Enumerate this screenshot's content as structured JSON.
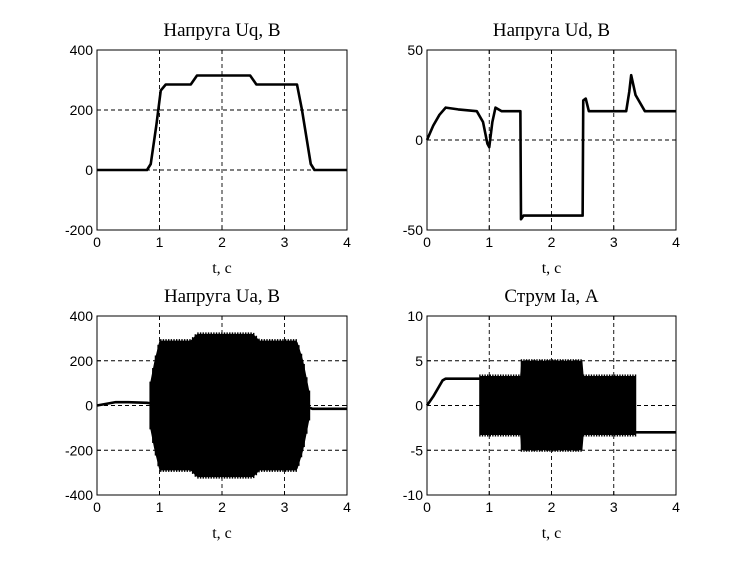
{
  "chart_data": [
    {
      "type": "line",
      "title": "Напруга Uq, В",
      "xlabel": "t,  c",
      "ylabel": "",
      "xlim": [
        0,
        4
      ],
      "ylim": [
        -200,
        400
      ],
      "xticks": [
        "0",
        "1",
        "2",
        "3",
        "4"
      ],
      "yticks": [
        "-200",
        "0",
        "200",
        "400"
      ],
      "grid": true,
      "series": [
        {
          "x": [
            0,
            0.8,
            0.86,
            0.95,
            1.02,
            1.1,
            1.5,
            1.6,
            2.45,
            2.55,
            3.2,
            3.28,
            3.42,
            3.48,
            4
          ],
          "y": [
            0,
            0,
            20,
            150,
            265,
            285,
            285,
            315,
            315,
            285,
            285,
            200,
            20,
            0,
            0
          ]
        }
      ]
    },
    {
      "type": "line",
      "title": "Напруга Ud, В",
      "xlabel": "t,  c",
      "ylabel": "",
      "xlim": [
        0,
        4
      ],
      "ylim": [
        -50,
        50
      ],
      "xticks": [
        "0",
        "1",
        "2",
        "3",
        "4"
      ],
      "yticks": [
        "-50",
        "0",
        "50"
      ],
      "grid": true,
      "series": [
        {
          "x": [
            0,
            0.1,
            0.2,
            0.3,
            0.5,
            0.8,
            0.9,
            0.97,
            1.0,
            1.05,
            1.1,
            1.2,
            1.5,
            1.51,
            1.55,
            1.6,
            2.5,
            2.51,
            2.55,
            2.6,
            3.2,
            3.25,
            3.28,
            3.35,
            3.5,
            4
          ],
          "y": [
            0,
            8,
            14,
            18,
            17,
            16,
            10,
            -2,
            -4,
            10,
            18,
            16,
            16,
            -44,
            -42,
            -42,
            -42,
            22,
            23,
            16,
            16,
            27,
            36,
            25,
            16,
            16
          ]
        }
      ]
    },
    {
      "type": "line",
      "title": "Напруга Ua, В",
      "xlabel": "t,  c",
      "ylabel": "",
      "xlim": [
        0,
        4
      ],
      "ylim": [
        -400,
        400
      ],
      "xticks": [
        "0",
        "1",
        "2",
        "3",
        "4"
      ],
      "yticks": [
        "-400",
        "-200",
        "0",
        "200",
        "400"
      ],
      "grid": true,
      "series": [
        {
          "x": [
            0,
            0.3,
            0.5,
            0.8,
            0.85
          ],
          "y": [
            0,
            15,
            15,
            12,
            10
          ]
        },
        {
          "x": [
            3.4,
            3.45,
            4
          ],
          "y": [
            -10,
            -15,
            -15
          ]
        }
      ],
      "envelope": {
        "x": [
          0.85,
          0.92,
          1.0,
          1.5,
          1.6,
          2.5,
          2.6,
          3.2,
          3.3,
          3.4
        ],
        "upper": [
          100,
          200,
          290,
          290,
          320,
          320,
          290,
          290,
          200,
          60
        ],
        "lower": [
          -100,
          -200,
          -290,
          -290,
          -320,
          -320,
          -290,
          -290,
          -200,
          -60
        ]
      }
    },
    {
      "type": "line",
      "title": "Струм Ia, А",
      "xlabel": "t,  c",
      "ylabel": "",
      "xlim": [
        0,
        4
      ],
      "ylim": [
        -10,
        10
      ],
      "xticks": [
        "0",
        "1",
        "2",
        "3",
        "4"
      ],
      "yticks": [
        "-10",
        "-5",
        "0",
        "5",
        "10"
      ],
      "grid": true,
      "series": [
        {
          "x": [
            0,
            0.1,
            0.25,
            0.3,
            0.8,
            0.85
          ],
          "y": [
            0,
            1,
            2.8,
            3,
            3,
            3
          ]
        },
        {
          "x": [
            3.35,
            3.4,
            4
          ],
          "y": [
            -3,
            -3,
            -3
          ]
        }
      ],
      "envelope": {
        "x": [
          0.85,
          0.88,
          1.5,
          1.51,
          2.5,
          2.51,
          3.35
        ],
        "upper": [
          3.3,
          3.3,
          3.3,
          5,
          5,
          3.3,
          3.3
        ],
        "lower": [
          -3.3,
          -3.3,
          -3.3,
          -5,
          -5,
          -3.3,
          -3.3
        ]
      }
    }
  ]
}
